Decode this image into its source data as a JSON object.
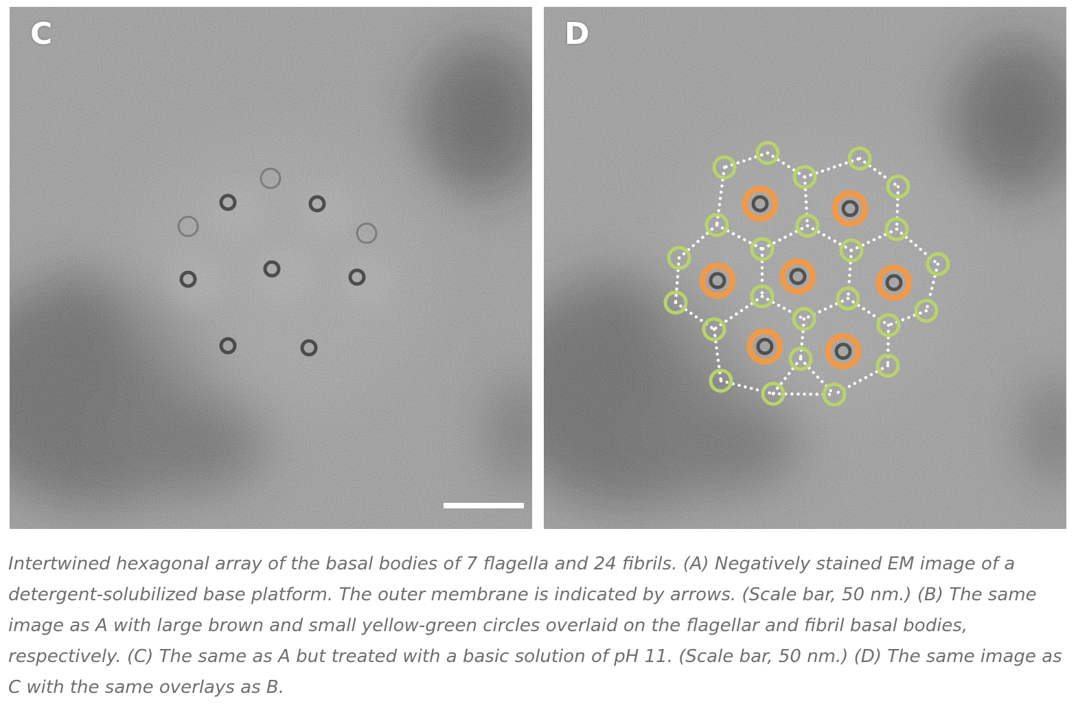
{
  "figure": {
    "panels": [
      {
        "label": "C",
        "overlays": false,
        "scale_bar": true
      },
      {
        "label": "D",
        "overlays": true,
        "scale_bar": false
      }
    ],
    "overlay_colors": {
      "flagellar_basal_body": "#ef9a4a",
      "fibril_basal_body": "#b9d36a",
      "lattice_dots": "#ffffff"
    },
    "flagella_count": 7,
    "fibril_count": 24
  },
  "caption": "Intertwined hexagonal array of the basal bodies of 7 flagella and 24 fibrils. (A) Negatively stained EM image of a detergent-solubilized base platform. The outer membrane is indicated by arrows. (Scale bar, 50 nm.) (B) The same image as A with large brown and small yellow-green circles overlaid on the flagellar and fibril basal bodies, respectively. (C) The same as A but treated with a basic solution of pH 11. (Scale bar, 50 nm.) (D) The same image as C with the same overlays as B."
}
